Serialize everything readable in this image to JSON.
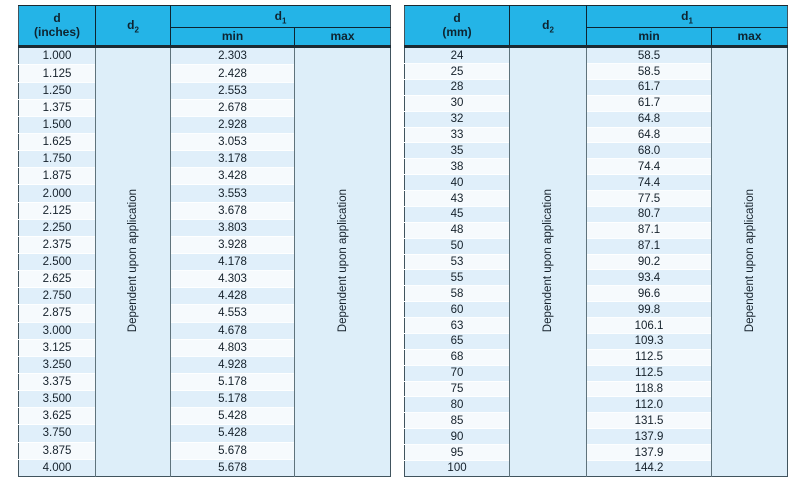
{
  "page": {
    "background": "#ffffff"
  },
  "colors": {
    "header_cyan": "#24b4e7",
    "border_dark": "#1b2a33",
    "grid_line": "#5f737c",
    "row_stripe_blue": "#e0effa",
    "row_stripe_light": "#f6fafd",
    "merged_cell_bg": "#ddeef9",
    "text_dark": "#15212b"
  },
  "tables": [
    {
      "name": "bore-dimensions-inches",
      "header": {
        "d_line1": "d",
        "d_line2": "(inches)",
        "d2_base": "d",
        "d2_sub": "2",
        "d1_base": "d",
        "d1_sub": "1",
        "min": "min",
        "max": "max"
      },
      "d2_text": "Dependent upon application",
      "max_text": "Dependent upon application",
      "rows": [
        {
          "d": "1.000",
          "min": "2.303"
        },
        {
          "d": "1.125",
          "min": "2.428"
        },
        {
          "d": "1.250",
          "min": "2.553"
        },
        {
          "d": "1.375",
          "min": "2.678"
        },
        {
          "d": "1.500",
          "min": "2.928"
        },
        {
          "d": "1.625",
          "min": "3.053"
        },
        {
          "d": "1.750",
          "min": "3.178"
        },
        {
          "d": "1.875",
          "min": "3.428"
        },
        {
          "d": "2.000",
          "min": "3.553"
        },
        {
          "d": "2.125",
          "min": "3.678"
        },
        {
          "d": "2.250",
          "min": "3.803"
        },
        {
          "d": "2.375",
          "min": "3.928"
        },
        {
          "d": "2.500",
          "min": "4.178"
        },
        {
          "d": "2.625",
          "min": "4.303"
        },
        {
          "d": "2.750",
          "min": "4.428"
        },
        {
          "d": "2.875",
          "min": "4.553"
        },
        {
          "d": "3.000",
          "min": "4.678"
        },
        {
          "d": "3.125",
          "min": "4.803"
        },
        {
          "d": "3.250",
          "min": "4.928"
        },
        {
          "d": "3.375",
          "min": "5.178"
        },
        {
          "d": "3.500",
          "min": "5.178"
        },
        {
          "d": "3.625",
          "min": "5.428"
        },
        {
          "d": "3.750",
          "min": "5.428"
        },
        {
          "d": "3.875",
          "min": "5.678"
        },
        {
          "d": "4.000",
          "min": "5.678"
        }
      ]
    },
    {
      "name": "bore-dimensions-mm",
      "header": {
        "d_line1": "d",
        "d_line2": "(mm)",
        "d2_base": "d",
        "d2_sub": "2",
        "d1_base": "d",
        "d1_sub": "1",
        "min": "min",
        "max": "max"
      },
      "d2_text": "Dependent upon application",
      "max_text": "Dependent upon application",
      "rows": [
        {
          "d": "24",
          "min": "58.5"
        },
        {
          "d": "25",
          "min": "58.5"
        },
        {
          "d": "28",
          "min": "61.7"
        },
        {
          "d": "30",
          "min": "61.7"
        },
        {
          "d": "32",
          "min": "64.8"
        },
        {
          "d": "33",
          "min": "64.8"
        },
        {
          "d": "35",
          "min": "68.0"
        },
        {
          "d": "38",
          "min": "74.4"
        },
        {
          "d": "40",
          "min": "74.4"
        },
        {
          "d": "43",
          "min": "77.5"
        },
        {
          "d": "45",
          "min": "80.7"
        },
        {
          "d": "48",
          "min": "87.1"
        },
        {
          "d": "50",
          "min": "87.1"
        },
        {
          "d": "53",
          "min": "90.2"
        },
        {
          "d": "55",
          "min": "93.4"
        },
        {
          "d": "58",
          "min": "96.6"
        },
        {
          "d": "60",
          "min": "99.8"
        },
        {
          "d": "63",
          "min": "106.1"
        },
        {
          "d": "65",
          "min": "109.3"
        },
        {
          "d": "68",
          "min": "112.5"
        },
        {
          "d": "70",
          "min": "112.5"
        },
        {
          "d": "75",
          "min": "118.8"
        },
        {
          "d": "80",
          "min": "112.0"
        },
        {
          "d": "85",
          "min": "131.5"
        },
        {
          "d": "90",
          "min": "137.9"
        },
        {
          "d": "95",
          "min": "137.9"
        },
        {
          "d": "100",
          "min": "144.2"
        }
      ]
    }
  ]
}
